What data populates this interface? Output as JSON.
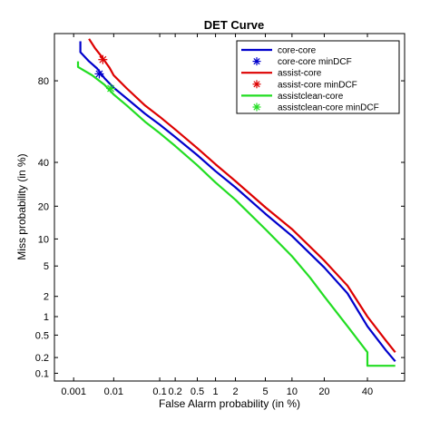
{
  "chart_data": {
    "type": "line",
    "title": "DET Curve",
    "xlabel": "False Alarm probability (in %)",
    "ylabel": "Miss probability (in %)",
    "x_scale": "normal-deviate",
    "y_scale": "normal-deviate",
    "xlim": [
      0.0003,
      60
    ],
    "ylim": [
      0.07,
      93
    ],
    "x_ticks": [
      0.001,
      0.01,
      0.1,
      0.2,
      0.5,
      1,
      2,
      5,
      10,
      20,
      40
    ],
    "x_tick_labels": [
      "0.001",
      "0.01",
      "0.1",
      "0.2",
      "0.5",
      "1",
      "2",
      "5",
      "10",
      "20",
      "40"
    ],
    "y_ticks": [
      0.1,
      0.2,
      0.5,
      1,
      2,
      5,
      10,
      20,
      40,
      80
    ],
    "y_tick_labels": [
      "0.1",
      "0.2",
      "0.5",
      "1",
      "2",
      "5",
      "10",
      "20",
      "40",
      "80"
    ],
    "grid": false,
    "legend_position": "top-right",
    "legend": [
      {
        "label": "core-core",
        "kind": "line",
        "color": "#0000cc"
      },
      {
        "label": "core-core minDCF",
        "kind": "marker",
        "color": "#0000cc"
      },
      {
        "label": "assist-core",
        "kind": "line",
        "color": "#dd0000"
      },
      {
        "label": "assist-core minDCF",
        "kind": "marker",
        "color": "#dd0000"
      },
      {
        "label": "assistclean-core",
        "kind": "line",
        "color": "#22dd22"
      },
      {
        "label": "assistclean-core minDCF",
        "kind": "marker",
        "color": "#22dd22"
      }
    ],
    "series": [
      {
        "name": "core-core",
        "color": "#0000cc",
        "x": [
          0.0015,
          0.0015,
          0.0025,
          0.004,
          0.006,
          0.01,
          0.02,
          0.05,
          0.1,
          0.2,
          0.5,
          1,
          2,
          5,
          10,
          20,
          30,
          40,
          50,
          55
        ],
        "y": [
          91.5,
          89,
          86.5,
          84.3,
          81,
          77.3,
          72.7,
          65.5,
          60,
          53.5,
          43.8,
          35.5,
          27.8,
          17.3,
          10.7,
          4.8,
          2.2,
          0.7,
          0.27,
          0.17
        ]
      },
      {
        "name": "core-core minDCF",
        "color": "#0000cc",
        "marker": "asterisk",
        "x": [
          0.0045
        ],
        "y": [
          82.5
        ]
      },
      {
        "name": "assist-core",
        "color": "#dd0000",
        "x": [
          0.0025,
          0.0035,
          0.005,
          0.008,
          0.01,
          0.02,
          0.05,
          0.1,
          0.2,
          0.5,
          1,
          2,
          5,
          10,
          20,
          30,
          40,
          50,
          55
        ],
        "y": [
          92,
          90,
          88,
          84.5,
          82,
          77,
          69.5,
          64,
          57.5,
          47.5,
          39,
          30.7,
          19.6,
          12.5,
          5.8,
          2.8,
          1.0,
          0.4,
          0.25
        ]
      },
      {
        "name": "assist-core minDCF",
        "color": "#dd0000",
        "marker": "asterisk",
        "x": [
          0.0055
        ],
        "y": [
          87
        ]
      },
      {
        "name": "assistclean-core",
        "color": "#22dd22",
        "x": [
          0.0013,
          0.0013,
          0.003,
          0.006,
          0.01,
          0.02,
          0.05,
          0.1,
          0.2,
          0.5,
          1,
          2,
          5,
          10,
          15,
          20,
          30,
          40,
          40,
          55
        ],
        "y": [
          86.5,
          84.8,
          82,
          78.5,
          74.5,
          69.5,
          61.5,
          55.5,
          48.7,
          38.5,
          30,
          22.5,
          12.5,
          6.5,
          3.6,
          2.0,
          0.7,
          0.25,
          0.14,
          0.14
        ]
      },
      {
        "name": "assistclean-core minDCF",
        "color": "#22dd22",
        "marker": "asterisk",
        "x": [
          0.0085
        ],
        "y": [
          77
        ]
      }
    ]
  }
}
